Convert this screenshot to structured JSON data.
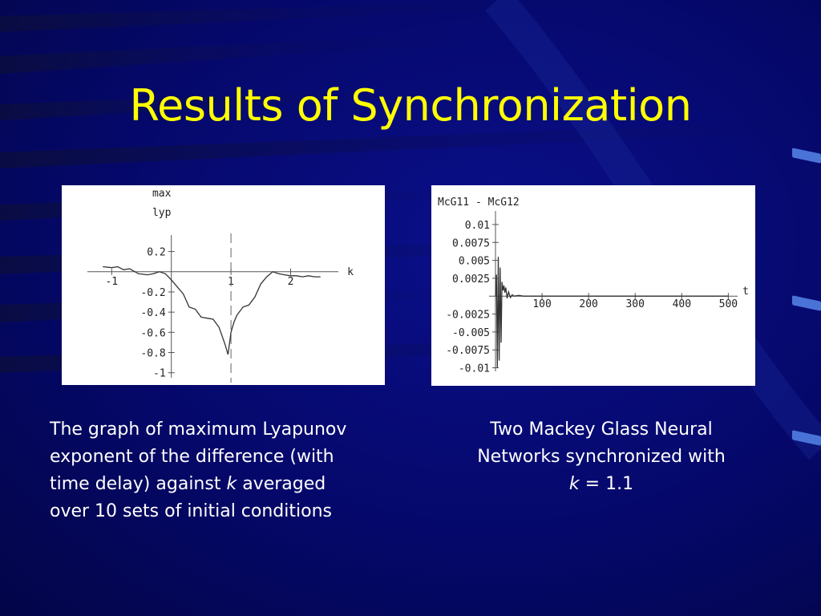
{
  "slide": {
    "title": "Results of Synchronization",
    "colors": {
      "background": "#05086a",
      "title": "#ffff00",
      "text": "#ffffff",
      "accent": "#4a73d8"
    }
  },
  "captions": {
    "left": {
      "line1": "The graph of maximum Lyapunov",
      "line2": "exponent of the difference (with",
      "line3_pre": "time delay) against ",
      "line3_k": "k",
      "line3_post": " averaged",
      "line4": "over 10 sets of initial conditions"
    },
    "right": {
      "line1": "Two Mackey Glass Neural",
      "line2": "Networks synchronized with",
      "line3_k": "k",
      "line3_post": " = 1.1"
    }
  },
  "chart_data": [
    {
      "type": "line",
      "ylabel_line1": "max",
      "ylabel_line2": "lyp",
      "xlabel": "k",
      "xlim": [
        -1.3,
        2.8
      ],
      "ylim": [
        -1.05,
        0.3
      ],
      "x_ticks": [
        {
          "v": -1,
          "label": "-1"
        },
        {
          "v": 1,
          "label": "1"
        },
        {
          "v": 2,
          "label": "2"
        }
      ],
      "y_ticks": [
        {
          "v": 0.2,
          "label": "0.2"
        },
        {
          "v": -0.2,
          "label": "-0.2"
        },
        {
          "v": -0.4,
          "label": "-0.4"
        },
        {
          "v": -0.6,
          "label": "-0.6"
        },
        {
          "v": -0.8,
          "label": "-0.8"
        },
        {
          "v": -1,
          "label": "-1"
        }
      ],
      "dashed_x": 1,
      "series": [
        {
          "x": [
            -1.15,
            -1.0,
            -0.9,
            -0.8,
            -0.7,
            -0.55,
            -0.4,
            -0.3,
            -0.2,
            -0.1,
            0.0,
            0.1,
            0.2,
            0.3,
            0.4,
            0.5,
            0.6,
            0.7,
            0.8,
            0.9,
            0.95,
            1.0,
            1.05,
            1.1,
            1.2,
            1.3,
            1.4,
            1.5,
            1.6,
            1.7,
            1.8,
            1.9,
            2.0,
            2.1,
            2.2,
            2.3,
            2.4,
            2.5
          ],
          "y": [
            0.05,
            0.04,
            0.05,
            0.02,
            0.03,
            -0.02,
            -0.03,
            -0.02,
            0.0,
            -0.02,
            -0.08,
            -0.15,
            -0.22,
            -0.35,
            -0.37,
            -0.45,
            -0.46,
            -0.47,
            -0.55,
            -0.72,
            -0.82,
            -0.6,
            -0.5,
            -0.43,
            -0.35,
            -0.33,
            -0.25,
            -0.12,
            -0.05,
            0.0,
            -0.02,
            -0.03,
            -0.04,
            -0.04,
            -0.05,
            -0.04,
            -0.05,
            -0.05
          ]
        }
      ]
    },
    {
      "type": "line",
      "title": "McG11 - McG12",
      "xlabel": "t",
      "xlim": [
        0,
        520
      ],
      "ylim": [
        -0.0105,
        0.011
      ],
      "x_ticks": [
        {
          "v": 100,
          "label": "100"
        },
        {
          "v": 200,
          "label": "200"
        },
        {
          "v": 300,
          "label": "300"
        },
        {
          "v": 400,
          "label": "400"
        },
        {
          "v": 500,
          "label": "500"
        }
      ],
      "y_ticks": [
        {
          "v": 0.01,
          "label": "0.01"
        },
        {
          "v": 0.0075,
          "label": "0.0075"
        },
        {
          "v": 0.005,
          "label": "0.005"
        },
        {
          "v": 0.0025,
          "label": "0.0025"
        },
        {
          "v": -0.0025,
          "label": "-0.0025"
        },
        {
          "v": -0.005,
          "label": "-0.005"
        },
        {
          "v": -0.0075,
          "label": "-0.0075"
        },
        {
          "v": -0.01,
          "label": "-0.01"
        }
      ],
      "series": [
        {
          "x": [
            0,
            2,
            4,
            6,
            8,
            10,
            12,
            14,
            16,
            18,
            20,
            22,
            25,
            28,
            32,
            36,
            40,
            50,
            60,
            80,
            100,
            200,
            300,
            400,
            500
          ],
          "y": [
            0.0,
            0.003,
            -0.01,
            0.0055,
            -0.009,
            0.004,
            -0.0065,
            0.002,
            0.0008,
            0.0015,
            0.0005,
            0.0012,
            -0.0003,
            0.0006,
            -0.0002,
            0.0002,
            0.0,
            0.0001,
            0.0,
            0.0,
            0.0,
            0.0,
            0.0,
            0.0,
            0.0
          ]
        }
      ]
    }
  ]
}
